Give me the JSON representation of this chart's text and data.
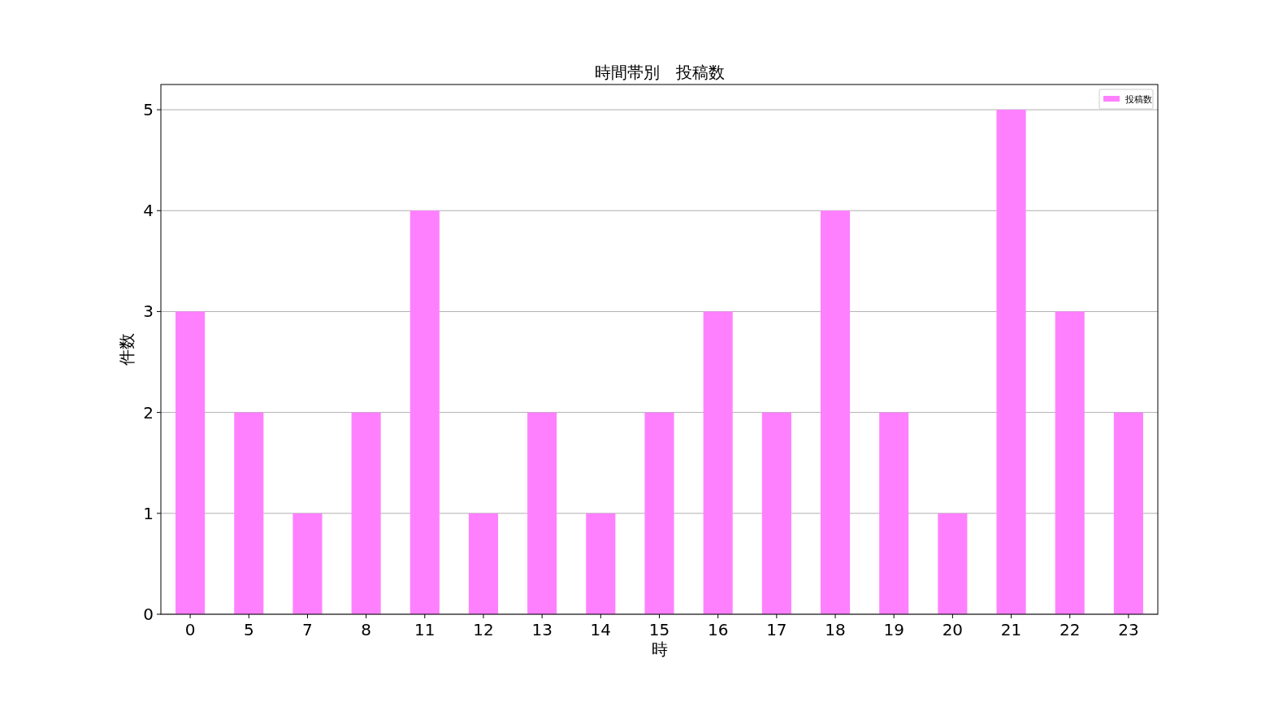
{
  "chart_data": {
    "type": "bar",
    "title": "時間帯別　投稿数",
    "xlabel": "時",
    "ylabel": "件数",
    "categories": [
      "0",
      "5",
      "7",
      "8",
      "11",
      "12",
      "13",
      "14",
      "15",
      "16",
      "17",
      "18",
      "19",
      "20",
      "21",
      "22",
      "23"
    ],
    "series": [
      {
        "name": "投稿数",
        "color": "#ff80ff",
        "values": [
          3,
          2,
          1,
          2,
          4,
          1,
          2,
          1,
          2,
          3,
          2,
          4,
          2,
          1,
          5,
          3,
          2
        ]
      }
    ],
    "ylim": [
      0,
      5.25
    ],
    "yticks": [
      0,
      1,
      2,
      3,
      4,
      5
    ],
    "grid": "y",
    "legend": "top right"
  }
}
